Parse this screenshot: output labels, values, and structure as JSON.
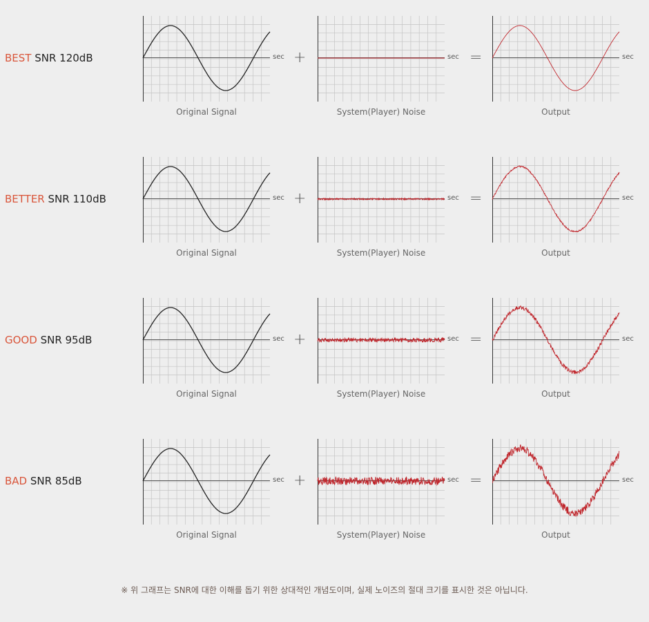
{
  "axis_unit": "sec",
  "operators": {
    "plus": "+",
    "equals": "="
  },
  "captions": {
    "original": "Original Signal",
    "noise": "System(Player) Noise",
    "output": "Output"
  },
  "rows": [
    {
      "grade": "BEST",
      "snr": "SNR 120dB",
      "noise_level": 0.0
    },
    {
      "grade": "BETTER",
      "snr": "SNR 110dB",
      "noise_level": 0.15
    },
    {
      "grade": "GOOD",
      "snr": "SNR 95dB",
      "noise_level": 0.4
    },
    {
      "grade": "BAD",
      "snr": "SNR 85dB",
      "noise_level": 0.8
    }
  ],
  "footnote": "※ 위 그래프는 SNR에 대한 이해를 돕기 위한 상대적인 개념도이며, 실제 노이즈의 절대 크기를 표시한 것은 아닙니다.",
  "colors": {
    "grade": "#d9553a",
    "signal": "#222222",
    "output": "#c0272d",
    "grid": "#c4c4c4"
  }
}
